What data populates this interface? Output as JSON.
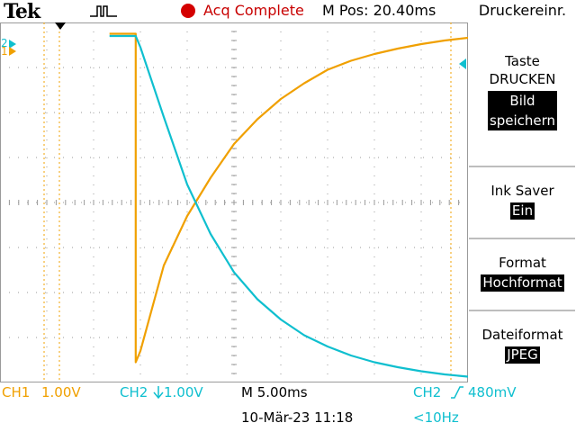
{
  "header": {
    "brand": "Tek",
    "trigger_icon": "trigger-pulse-icon",
    "acq_status": "Acq Complete",
    "status_color": "#d40000",
    "m_pos": "M Pos: 20.40ms",
    "menu_title": "Druckereinr."
  },
  "side_menu": {
    "items": [
      {
        "label1": "Taste",
        "label2": "DRUCKEN",
        "value1": "Bild",
        "value2": "speichern"
      },
      {
        "label1": "Ink Saver",
        "value1": "Ein"
      },
      {
        "label1": "Format",
        "value1": "Hochformat"
      },
      {
        "label1": "Dateiformat",
        "value1": "JPEG"
      }
    ]
  },
  "channels": {
    "ch1": {
      "name": "CH1",
      "scale": "1.00V",
      "color": "#f0a000",
      "marker": "1"
    },
    "ch2": {
      "name": "CH2",
      "scale": "1.00V",
      "color": "#0fbfcf",
      "marker": "2"
    }
  },
  "timebase": {
    "label": "M 5.00ms"
  },
  "trigger": {
    "source": "CH2",
    "level": "480mV",
    "freq": "<10Hz"
  },
  "datetime": "10-Mär-23 11:18",
  "chart_data": {
    "type": "line",
    "series": [
      {
        "name": "CH1",
        "color": "#f0a000",
        "x": [
          -2.66,
          -2.1,
          -2.1,
          -2,
          -1.5,
          -1,
          -0.5,
          0,
          0.5,
          1,
          1.5,
          2,
          2.5,
          3,
          3.5,
          4,
          4.5,
          5,
          5.5,
          6,
          6.5,
          7
        ],
        "y": [
          3.75,
          3.75,
          -3.55,
          -3.3,
          -1.4,
          -0.3,
          0.55,
          1.3,
          1.85,
          2.3,
          2.65,
          2.95,
          3.15,
          3.3,
          3.42,
          3.52,
          3.6,
          3.66,
          3.7,
          3.74,
          3.76,
          3.78
        ]
      },
      {
        "name": "CH2",
        "color": "#0fbfcf",
        "x": [
          -2.66,
          -2.1,
          -2,
          -1.5,
          -1,
          -0.5,
          0,
          0.5,
          1,
          1.5,
          2,
          2.5,
          3,
          3.5,
          4,
          4.5,
          5,
          5.5,
          6,
          6.5,
          7
        ],
        "y": [
          3.7,
          3.7,
          3.45,
          1.9,
          0.4,
          -0.7,
          -1.55,
          -2.15,
          -2.6,
          -2.95,
          -3.2,
          -3.4,
          -3.55,
          -3.66,
          -3.75,
          -3.82,
          -3.87,
          -3.9,
          -3.93,
          -3.95,
          -3.97
        ]
      }
    ]
  }
}
